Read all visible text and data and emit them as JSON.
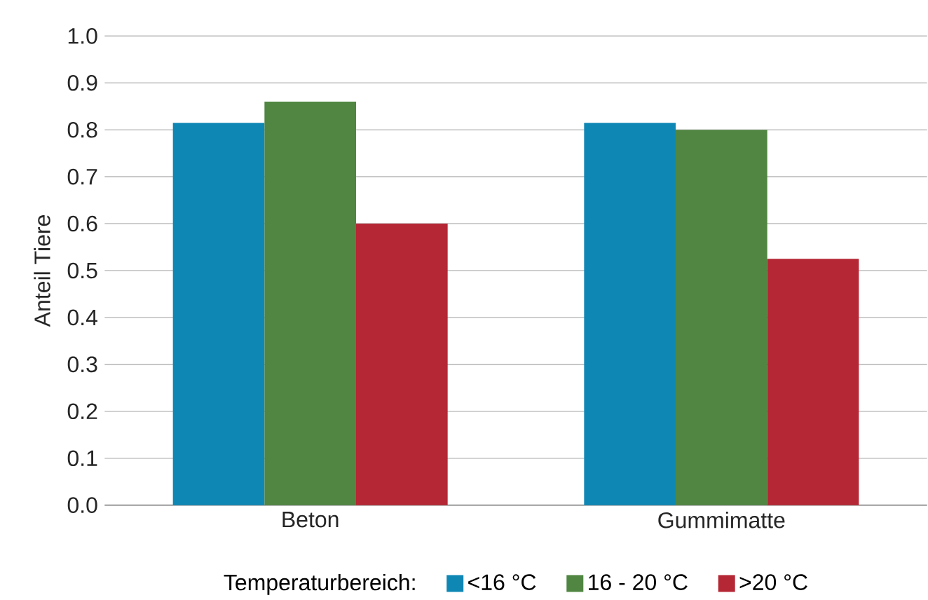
{
  "chart_data": {
    "type": "bar",
    "ylabel": "Anteil Tiere",
    "legend_title": "Temperaturbereich:",
    "categories": [
      "Beton",
      "Gummimatte"
    ],
    "series": [
      {
        "name": "<16 °C",
        "color": "#0f87b5",
        "values": [
          0.815,
          0.815
        ]
      },
      {
        "name": "16 - 20 °C",
        "color": "#508641",
        "values": [
          0.86,
          0.8
        ]
      },
      {
        "name": ">20 °C",
        "color": "#b52735",
        "values": [
          0.6,
          0.525
        ]
      }
    ],
    "ylim": [
      0,
      1
    ],
    "yticks": [
      {
        "value": 0,
        "label": "0.0"
      },
      {
        "value": 0.1,
        "label": "0.1"
      },
      {
        "value": 0.2,
        "label": "0.2"
      },
      {
        "value": 0.3,
        "label": "0.3"
      },
      {
        "value": 0.4,
        "label": "0.4"
      },
      {
        "value": 0.5,
        "label": "0.5"
      },
      {
        "value": 0.6,
        "label": "0.6"
      },
      {
        "value": 0.7,
        "label": "0.7"
      },
      {
        "value": 0.8,
        "label": "0.8"
      },
      {
        "value": 0.9,
        "label": "0.9"
      },
      {
        "value": 1.0,
        "label": "1.0"
      }
    ],
    "grid": "y",
    "legend": "bottom"
  }
}
